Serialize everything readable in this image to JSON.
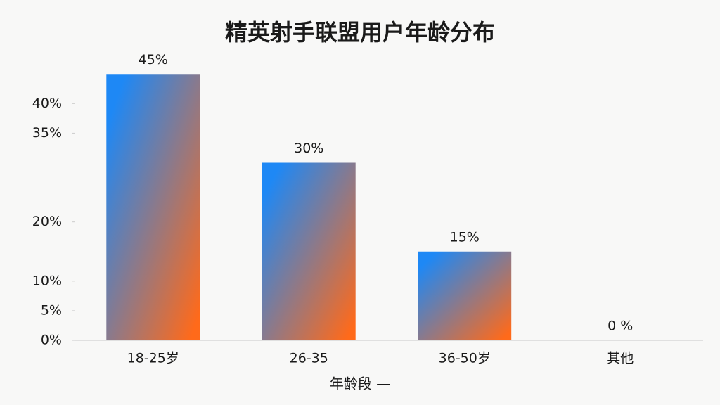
{
  "chart_data": {
    "type": "bar",
    "title": "精英射手联盟用户年龄分布",
    "x_label": "年龄段 —",
    "categories": [
      "18-25岁",
      "26-35",
      "36-50岁",
      "其他"
    ],
    "values": [
      45,
      30,
      15,
      0
    ],
    "value_labels": [
      "45%",
      "30%",
      "15%",
      "0 %"
    ],
    "colors": [
      "#1e88f5",
      "#ff6a1a"
    ],
    "ylim": [
      0,
      48
    ],
    "yticks": [
      {
        "value": 0,
        "label": "0%"
      },
      {
        "value": 5,
        "label": "5%"
      },
      {
        "value": 10,
        "label": "10%"
      },
      {
        "value": 20,
        "label": "20%"
      },
      {
        "value": 35,
        "label": "35%"
      },
      {
        "value": 40,
        "label": "40%"
      }
    ],
    "grid": false
  }
}
